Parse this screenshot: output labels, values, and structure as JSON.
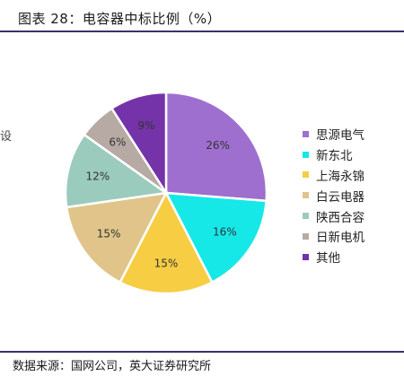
{
  "header": {
    "title": "图表 28：电容器中标比例（%）"
  },
  "side_fragment": "设",
  "footer": {
    "source": "数据来源：国网公司，英大证券研究所"
  },
  "chart_data": {
    "type": "pie",
    "title": "",
    "unit": "%",
    "start_angle_deg": 0,
    "direction": "clockwise",
    "legend_position": "right",
    "slices": [
      {
        "name": "思源电气",
        "value": 26,
        "label": "26%",
        "color": "#9e6fcf"
      },
      {
        "name": "新东北",
        "value": 16,
        "label": "16%",
        "color": "#16e8e8"
      },
      {
        "name": "上海永锦",
        "value": 15,
        "label": "15%",
        "color": "#f7cd43"
      },
      {
        "name": "白云电器",
        "value": 15,
        "label": "15%",
        "color": "#e0c489"
      },
      {
        "name": "陕西合容",
        "value": 12,
        "label": "12%",
        "color": "#9bcbbd"
      },
      {
        "name": "日新电机",
        "value": 6,
        "label": "6%",
        "color": "#b7aaa4"
      },
      {
        "name": "其他",
        "value": 9,
        "label": "9%",
        "color": "#7433a8"
      }
    ]
  }
}
